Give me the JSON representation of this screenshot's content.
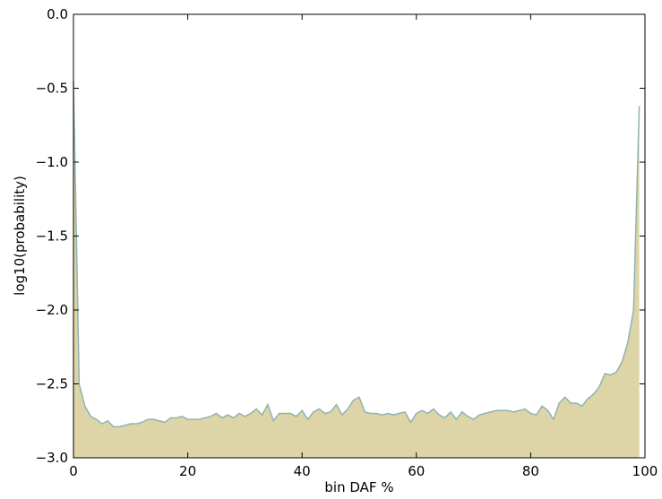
{
  "chart_data": {
    "type": "area",
    "xlabel": "bin DAF %",
    "ylabel": "log10(probability)",
    "fill_color": "#ddd5a8",
    "line_color": "#8fb3b0",
    "x": [
      0,
      1,
      2,
      3,
      4,
      5,
      6,
      7,
      8,
      9,
      10,
      11,
      12,
      13,
      14,
      15,
      16,
      17,
      18,
      19,
      20,
      21,
      22,
      23,
      24,
      25,
      26,
      27,
      28,
      29,
      30,
      31,
      32,
      33,
      34,
      35,
      36,
      37,
      38,
      39,
      40,
      41,
      42,
      43,
      44,
      45,
      46,
      47,
      48,
      49,
      50,
      51,
      52,
      53,
      54,
      55,
      56,
      57,
      58,
      59,
      60,
      61,
      62,
      63,
      64,
      65,
      66,
      67,
      68,
      69,
      70,
      71,
      72,
      73,
      74,
      75,
      76,
      77,
      78,
      79,
      80,
      81,
      82,
      83,
      84,
      85,
      86,
      87,
      88,
      89,
      90,
      91,
      92,
      93,
      94,
      95,
      96,
      97,
      98,
      99
    ],
    "values": [
      -0.45,
      -2.5,
      -2.65,
      -2.72,
      -2.74,
      -2.77,
      -2.75,
      -2.79,
      -2.79,
      -2.78,
      -2.77,
      -2.77,
      -2.76,
      -2.74,
      -2.74,
      -2.75,
      -2.76,
      -2.73,
      -2.73,
      -2.72,
      -2.74,
      -2.74,
      -2.74,
      -2.73,
      -2.72,
      -2.7,
      -2.73,
      -2.71,
      -2.73,
      -2.7,
      -2.72,
      -2.7,
      -2.67,
      -2.71,
      -2.64,
      -2.75,
      -2.7,
      -2.7,
      -2.7,
      -2.72,
      -2.68,
      -2.74,
      -2.69,
      -2.67,
      -2.7,
      -2.69,
      -2.64,
      -2.71,
      -2.67,
      -2.61,
      -2.59,
      -2.69,
      -2.7,
      -2.7,
      -2.71,
      -2.7,
      -2.71,
      -2.7,
      -2.69,
      -2.76,
      -2.7,
      -2.68,
      -2.7,
      -2.67,
      -2.71,
      -2.73,
      -2.69,
      -2.74,
      -2.69,
      -2.72,
      -2.74,
      -2.71,
      -2.7,
      -2.69,
      -2.68,
      -2.68,
      -2.68,
      -2.69,
      -2.68,
      -2.67,
      -2.7,
      -2.71,
      -2.65,
      -2.68,
      -2.74,
      -2.63,
      -2.59,
      -2.63,
      -2.63,
      -2.65,
      -2.6,
      -2.57,
      -2.52,
      -2.43,
      -2.44,
      -2.42,
      -2.35,
      -2.22,
      -2.0,
      -0.62
    ],
    "xlim": [
      0,
      100
    ],
    "xticks": [
      0,
      20,
      40,
      60,
      80,
      100
    ],
    "ylim": [
      -3,
      0
    ],
    "yticks": [
      {
        "value": -3,
        "label": "−3.0"
      },
      {
        "value": -2.5,
        "label": "−2.5"
      },
      {
        "value": -2,
        "label": "−2.0"
      },
      {
        "value": -1.5,
        "label": "−1.5"
      },
      {
        "value": -1,
        "label": "−1.0"
      },
      {
        "value": -0.5,
        "label": "−0.5"
      },
      {
        "value": 0,
        "label": "0.0"
      }
    ]
  }
}
